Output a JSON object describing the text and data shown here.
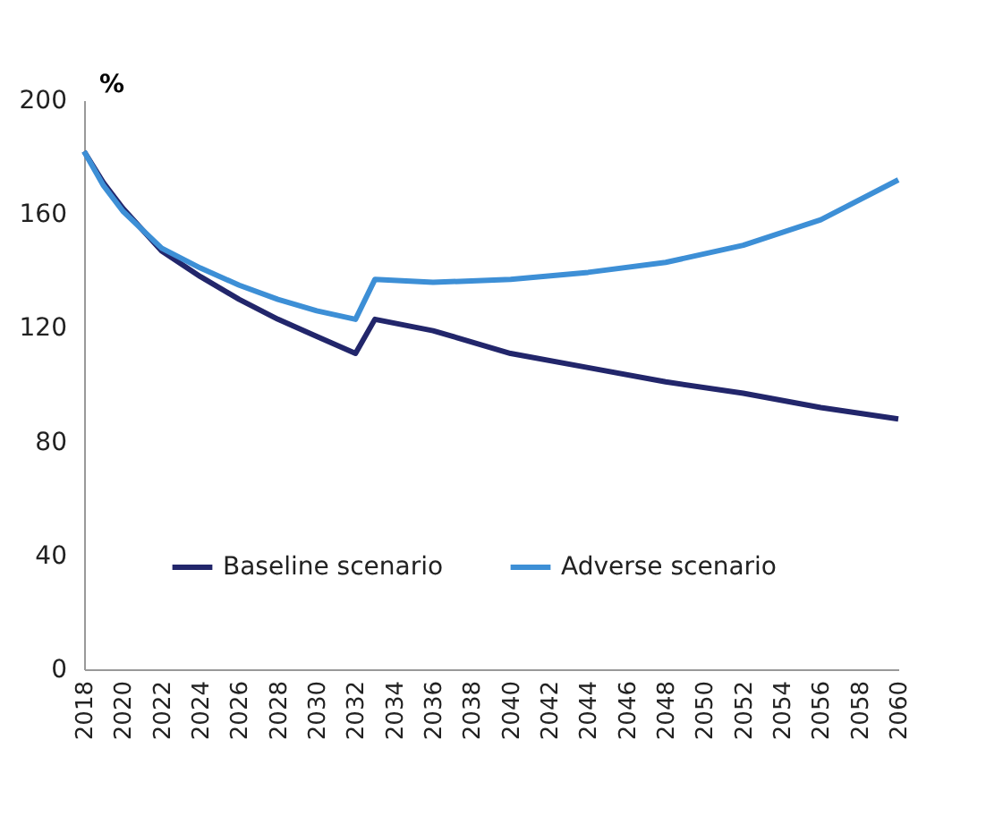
{
  "chart_data": {
    "type": "line",
    "ylabel": "%",
    "x": [
      2018,
      2019,
      2020,
      2022,
      2024,
      2026,
      2028,
      2030,
      2032,
      2033,
      2036,
      2040,
      2044,
      2048,
      2052,
      2056,
      2060
    ],
    "series": [
      {
        "name": "Baseline scenario",
        "color": "#22266b",
        "values": [
          182,
          171,
          162,
          147,
          138,
          130,
          123,
          117,
          111,
          123,
          119,
          111,
          106,
          101,
          97,
          92,
          88
        ]
      },
      {
        "name": "Adverse scenario",
        "color": "#3d8fd6",
        "values": [
          182,
          170,
          161,
          148,
          141,
          135,
          130,
          126,
          123,
          137,
          136,
          137,
          139.5,
          143,
          149,
          158,
          172
        ]
      }
    ],
    "xlim": [
      2018,
      2060
    ],
    "xticks": [
      2018,
      2020,
      2022,
      2024,
      2026,
      2028,
      2030,
      2032,
      2034,
      2036,
      2038,
      2040,
      2042,
      2044,
      2046,
      2048,
      2050,
      2052,
      2054,
      2056,
      2058,
      2060
    ],
    "ylim": [
      0,
      200
    ],
    "yticks": [
      0,
      40,
      80,
      120,
      160,
      200
    ],
    "grid": false,
    "legend": "bottom",
    "marker": "none",
    "line_style": "solid"
  }
}
